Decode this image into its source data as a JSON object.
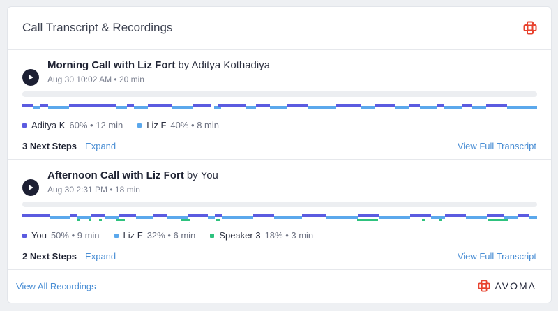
{
  "header": {
    "title": "Call Transcript & Recordings",
    "logo_icon": "avoma-logo-icon"
  },
  "colors": {
    "speaker_a": "#5b5be0",
    "speaker_b": "#5ba8ec",
    "speaker_c": "#2ec27e",
    "link": "#4a8ed4"
  },
  "calls": [
    {
      "title": "Morning Call with Liz Fort",
      "by": "by Aditya Kothadiya",
      "meta": "Aug 30 10:02 AM • 20 min",
      "speakers": [
        {
          "name": "Aditya K",
          "stat": "60% • 12 min",
          "color": "#5b5be0"
        },
        {
          "name": "Liz F",
          "stat": "40% • 8 min",
          "color": "#5ba8ec"
        }
      ],
      "next_steps": "3 Next Steps",
      "expand": "Expand",
      "view_full": "View Full Transcript"
    },
    {
      "title": "Afternoon Call with Liz Fort",
      "by": "by You",
      "meta": "Aug 30 2:31 PM • 18 min",
      "speakers": [
        {
          "name": "You",
          "stat": "50% • 9 min",
          "color": "#5b5be0"
        },
        {
          "name": "Liz F",
          "stat": "32% • 6 min",
          "color": "#5ba8ec"
        },
        {
          "name": "Speaker 3",
          "stat": "18% • 3 min",
          "color": "#2ec27e"
        }
      ],
      "next_steps": "2 Next Steps",
      "expand": "Expand",
      "view_full": "View Full Transcript"
    }
  ],
  "footer": {
    "view_all": "View All Recordings",
    "brand": "AVOMA"
  }
}
